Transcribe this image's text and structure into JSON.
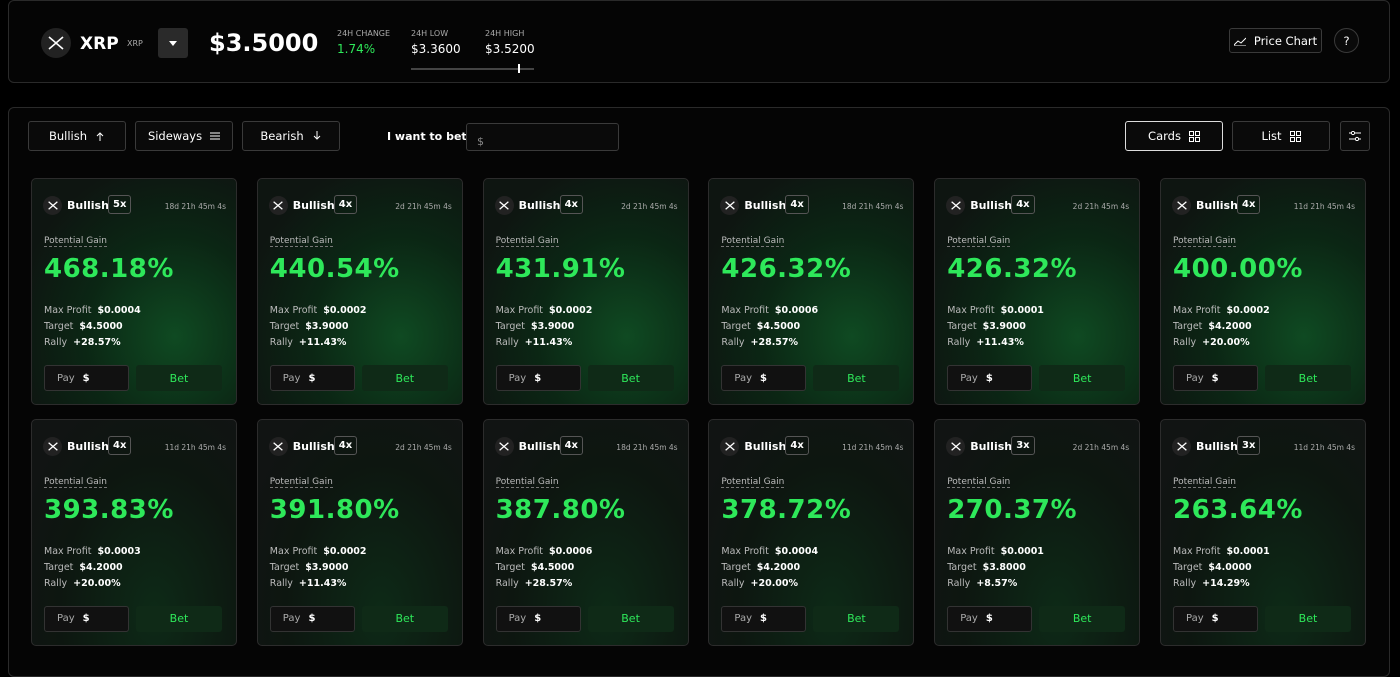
{
  "header": {
    "coin": "XRP",
    "ticker": "XRP",
    "price": "$3.5000",
    "change_label": "24H CHANGE",
    "change": "1.74%",
    "low_label": "24H LOW",
    "low": "$3.3600",
    "high_label": "24H HIGH",
    "high": "$3.5200",
    "price_chart": "Price Chart",
    "help": "?"
  },
  "toolbar": {
    "filters": [
      "Bullish",
      "Sideways",
      "Bearish"
    ],
    "bet_label": "I want to bet:",
    "bet_placeholder": "$",
    "views": [
      "Cards",
      "List"
    ]
  },
  "labels": {
    "gain": "Potential Gain",
    "max_profit": "Max Profit",
    "target": "Target",
    "rally": "Rally",
    "pay": "Pay",
    "currency": "$",
    "bet": "Bet"
  },
  "cards": [
    {
      "direction": "Bullish",
      "leverage": "5x",
      "timer": "18d 21h 45m 4s",
      "gain": "468.18%",
      "max_profit": "$0.0004",
      "target": "$4.5000",
      "rally": "+28.57%"
    },
    {
      "direction": "Bullish",
      "leverage": "4x",
      "timer": "2d 21h 45m 4s",
      "gain": "440.54%",
      "max_profit": "$0.0002",
      "target": "$3.9000",
      "rally": "+11.43%"
    },
    {
      "direction": "Bullish",
      "leverage": "4x",
      "timer": "2d 21h 45m 4s",
      "gain": "431.91%",
      "max_profit": "$0.0002",
      "target": "$3.9000",
      "rally": "+11.43%"
    },
    {
      "direction": "Bullish",
      "leverage": "4x",
      "timer": "18d 21h 45m 4s",
      "gain": "426.32%",
      "max_profit": "$0.0006",
      "target": "$4.5000",
      "rally": "+28.57%"
    },
    {
      "direction": "Bullish",
      "leverage": "4x",
      "timer": "2d 21h 45m 4s",
      "gain": "426.32%",
      "max_profit": "$0.0001",
      "target": "$3.9000",
      "rally": "+11.43%"
    },
    {
      "direction": "Bullish",
      "leverage": "4x",
      "timer": "11d 21h 45m 4s",
      "gain": "400.00%",
      "max_profit": "$0.0002",
      "target": "$4.2000",
      "rally": "+20.00%"
    },
    {
      "direction": "Bullish",
      "leverage": "4x",
      "timer": "11d 21h 45m 4s",
      "gain": "393.83%",
      "max_profit": "$0.0003",
      "target": "$4.2000",
      "rally": "+20.00%"
    },
    {
      "direction": "Bullish",
      "leverage": "4x",
      "timer": "2d 21h 45m 4s",
      "gain": "391.80%",
      "max_profit": "$0.0002",
      "target": "$3.9000",
      "rally": "+11.43%"
    },
    {
      "direction": "Bullish",
      "leverage": "4x",
      "timer": "18d 21h 45m 4s",
      "gain": "387.80%",
      "max_profit": "$0.0006",
      "target": "$4.5000",
      "rally": "+28.57%"
    },
    {
      "direction": "Bullish",
      "leverage": "4x",
      "timer": "11d 21h 45m 4s",
      "gain": "378.72%",
      "max_profit": "$0.0004",
      "target": "$4.2000",
      "rally": "+20.00%"
    },
    {
      "direction": "Bullish",
      "leverage": "3x",
      "timer": "2d 21h 45m 4s",
      "gain": "270.37%",
      "max_profit": "$0.0001",
      "target": "$3.8000",
      "rally": "+8.57%"
    },
    {
      "direction": "Bullish",
      "leverage": "3x",
      "timer": "11d 21h 45m 4s",
      "gain": "263.64%",
      "max_profit": "$0.0001",
      "target": "$4.0000",
      "rally": "+14.29%"
    }
  ]
}
